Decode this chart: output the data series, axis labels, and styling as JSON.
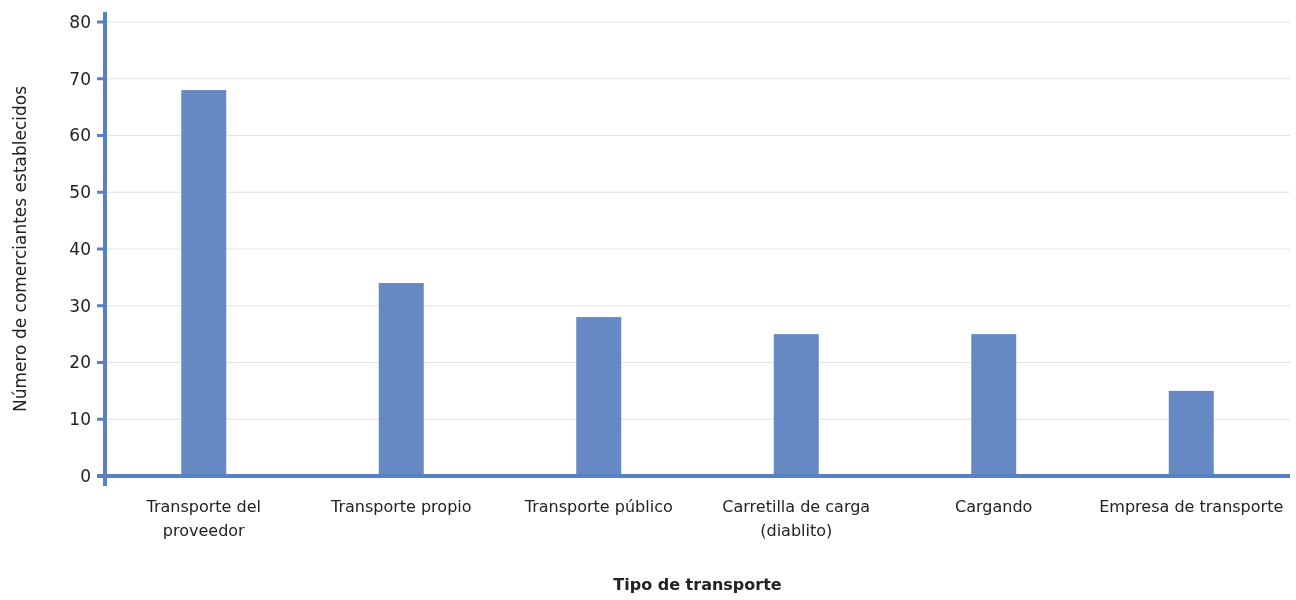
{
  "chart_data": {
    "type": "bar",
    "xlabel": "Tipo de transporte",
    "ylabel": "Número de comerciantes establecidos",
    "categories": [
      "Transporte del proveedor",
      "Transporte propio",
      "Transporte público",
      "Carretilla de carga (diablito)",
      "Cargando",
      "Empresa de transporte"
    ],
    "values": [
      68,
      34,
      28,
      25,
      25,
      15
    ],
    "color": "#6689c4",
    "ylim": [
      0,
      80
    ],
    "yticks": [
      0,
      10,
      20,
      30,
      40,
      50,
      60,
      70,
      80
    ],
    "grid": "y"
  }
}
